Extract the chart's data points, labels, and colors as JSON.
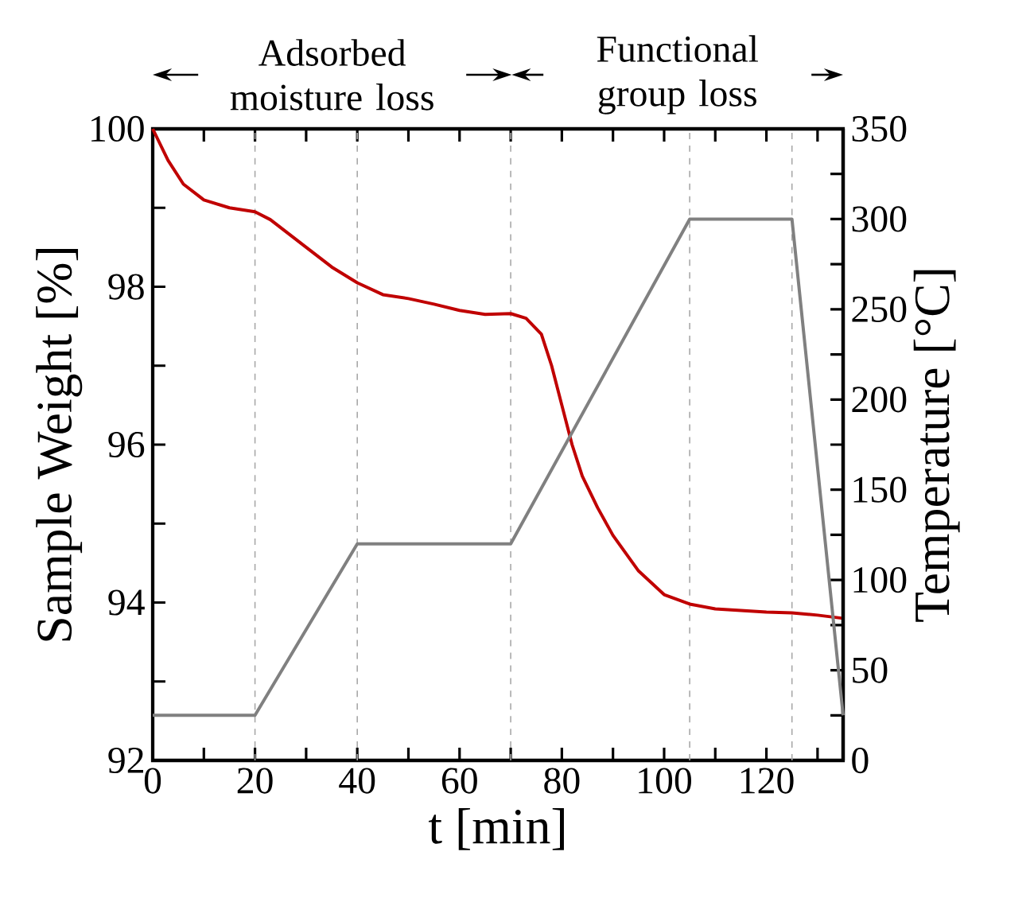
{
  "chart_data": {
    "type": "line",
    "xlabel": "t [min]",
    "ylabel": "Sample Weight [%]",
    "y2label": "Temperature [°C]",
    "xlim": [
      0,
      135
    ],
    "xticks": [
      0,
      {
        "value": 10,
        "label": null
      },
      20,
      {
        "value": 30,
        "label": null
      },
      40,
      {
        "value": 50,
        "label": null
      },
      60,
      {
        "value": 70,
        "label": null
      },
      80,
      {
        "value": 90,
        "label": null
      },
      100,
      {
        "value": 110,
        "label": null
      },
      120,
      {
        "value": 130,
        "label": null
      }
    ],
    "ylim": [
      92,
      100
    ],
    "yticks": [
      92,
      {
        "value": 93,
        "label": null
      },
      94,
      {
        "value": 95,
        "label": null
      },
      96,
      {
        "value": 97,
        "label": null
      },
      98,
      {
        "value": 99,
        "label": null
      },
      100
    ],
    "y2lim": [
      0,
      350
    ],
    "y2ticks": [
      0,
      {
        "value": 25,
        "label": null
      },
      50,
      {
        "value": 75,
        "label": null
      },
      100,
      {
        "value": 125,
        "label": null
      },
      150,
      {
        "value": 175,
        "label": null
      },
      200,
      {
        "value": 225,
        "label": null
      },
      250,
      {
        "value": 275,
        "label": null
      },
      300,
      {
        "value": 325,
        "label": null
      },
      350
    ],
    "series": [
      {
        "color": "#c00000",
        "x": [
          0,
          3,
          6,
          10,
          15,
          20,
          23,
          30,
          35,
          40,
          45,
          50,
          55,
          60,
          65,
          70,
          73,
          76,
          78,
          80,
          82,
          84,
          87,
          90,
          95,
          100,
          105,
          110,
          115,
          120,
          125,
          130,
          135
        ],
        "values": [
          100,
          99.6,
          99.3,
          99.1,
          99.0,
          98.95,
          98.85,
          98.5,
          98.25,
          98.05,
          97.9,
          97.85,
          97.78,
          97.7,
          97.65,
          97.66,
          97.6,
          97.4,
          97.0,
          96.5,
          96.0,
          95.6,
          95.2,
          94.85,
          94.4,
          94.1,
          93.98,
          93.92,
          93.9,
          93.88,
          93.87,
          93.84,
          93.8
        ]
      },
      {
        "color": "#808080",
        "axis": "y2",
        "x": [
          0,
          20,
          40,
          70,
          105,
          125,
          135
        ],
        "values": [
          25,
          25,
          120,
          120,
          300,
          300,
          25
        ]
      }
    ],
    "ref_lines": [
      {
        "axis": "x",
        "value": 20,
        "color": "#a8a8a8",
        "line_style": "dashed"
      },
      {
        "axis": "x",
        "value": 40,
        "color": "#a8a8a8",
        "line_style": "dashed"
      },
      {
        "axis": "x",
        "value": 70,
        "color": "#a8a8a8",
        "line_style": "dashed"
      },
      {
        "axis": "x",
        "value": 105,
        "color": "#a8a8a8",
        "line_style": "dashed"
      },
      {
        "axis": "x",
        "value": 125,
        "color": "#a8a8a8",
        "line_style": "dashed"
      }
    ],
    "annotations": [
      "Adsorbed moisture loss",
      "Functional group loss"
    ],
    "grid": false,
    "marker": "none",
    "line_style": "solid"
  }
}
